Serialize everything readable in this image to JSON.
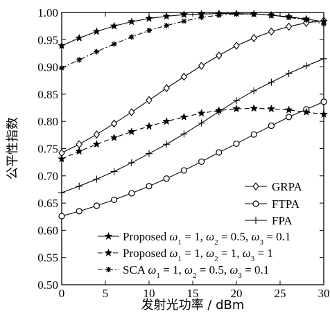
{
  "chart_data": {
    "type": "line",
    "title": "",
    "xlabel": "发射光功率 / dBm",
    "ylabel": "公平性指数",
    "xlim": [
      0,
      30
    ],
    "ylim": [
      0.5,
      1.0
    ],
    "xticks": [
      0,
      5,
      10,
      15,
      20,
      25,
      30
    ],
    "yticks": [
      0.5,
      0.55,
      0.6,
      0.65,
      0.7,
      0.75,
      0.8,
      0.85,
      0.9,
      0.95,
      1.0
    ],
    "xtick_labels": [
      "0",
      "5",
      "10",
      "15",
      "20",
      "25",
      "30"
    ],
    "ytick_labels": [
      "0.50",
      "0.55",
      "0.60",
      "0.65",
      "0.70",
      "0.75",
      "0.80",
      "0.85",
      "0.90",
      "0.95",
      "1.00"
    ],
    "grid": false,
    "legend_position": "bottom-right",
    "x": [
      0,
      2,
      4,
      6,
      8,
      10,
      12,
      14,
      16,
      18,
      20,
      22,
      24,
      26,
      28,
      30
    ],
    "series": [
      {
        "name": "GRPA",
        "marker": "diamond",
        "dash": "solid",
        "values": [
          0.742,
          0.758,
          0.776,
          0.796,
          0.817,
          0.839,
          0.861,
          0.882,
          0.902,
          0.921,
          0.939,
          0.953,
          0.965,
          0.974,
          0.981,
          0.985
        ]
      },
      {
        "name": "FTPA",
        "marker": "circle",
        "dash": "solid",
        "values": [
          0.626,
          0.635,
          0.645,
          0.656,
          0.668,
          0.681,
          0.695,
          0.71,
          0.726,
          0.743,
          0.759,
          0.776,
          0.792,
          0.808,
          0.822,
          0.836
        ]
      },
      {
        "name": "FPA",
        "marker": "plus",
        "dash": "solid",
        "values": [
          0.669,
          0.681,
          0.694,
          0.708,
          0.724,
          0.741,
          0.758,
          0.777,
          0.797,
          0.818,
          0.838,
          0.856,
          0.872,
          0.888,
          0.902,
          0.915
        ]
      },
      {
        "name": "Proposed ω1=1, ω2=0.5, ω3=0.1",
        "marker": "star",
        "dash": "solid",
        "values": [
          0.939,
          0.953,
          0.965,
          0.975,
          0.983,
          0.989,
          0.993,
          0.996,
          0.997,
          0.998,
          0.998,
          0.997,
          0.995,
          0.992,
          0.988,
          0.983
        ]
      },
      {
        "name": "Proposed ω1=1, ω2=1, ω3=1",
        "marker": "star",
        "dash": "dash",
        "values": [
          0.731,
          0.745,
          0.758,
          0.77,
          0.781,
          0.791,
          0.8,
          0.808,
          0.815,
          0.82,
          0.823,
          0.824,
          0.823,
          0.821,
          0.817,
          0.813
        ]
      },
      {
        "name": "SCA ω1=1, ω2=0.5, ω3=0.1",
        "marker": "asterisk",
        "dash": "dashdot",
        "values": [
          0.898,
          0.913,
          0.928,
          0.942,
          0.955,
          0.967,
          0.976,
          0.984,
          0.991,
          0.995,
          0.997,
          0.997,
          0.995,
          0.991,
          0.986,
          0.979
        ]
      }
    ],
    "legend": [
      {
        "parts": [
          {
            "t": "GRPA"
          }
        ]
      },
      {
        "parts": [
          {
            "t": "FTPA"
          }
        ]
      },
      {
        "parts": [
          {
            "t": "FPA"
          }
        ]
      },
      {
        "parts": [
          {
            "t": "Proposed "
          },
          {
            "t": "ω",
            "i": true
          },
          {
            "t": "1",
            "sub": true
          },
          {
            "t": " = 1, "
          },
          {
            "t": "ω",
            "i": true
          },
          {
            "t": "2",
            "sub": true
          },
          {
            "t": " = 0.5, "
          },
          {
            "t": "ω",
            "i": true
          },
          {
            "t": "3",
            "sub": true
          },
          {
            "t": " = 0.1"
          }
        ]
      },
      {
        "parts": [
          {
            "t": "Proposed "
          },
          {
            "t": "ω",
            "i": true
          },
          {
            "t": "1",
            "sub": true
          },
          {
            "t": " = 1, "
          },
          {
            "t": "ω",
            "i": true
          },
          {
            "t": "2",
            "sub": true
          },
          {
            "t": " = 1, "
          },
          {
            "t": "ω",
            "i": true
          },
          {
            "t": "3",
            "sub": true
          },
          {
            "t": " = 1"
          }
        ]
      },
      {
        "parts": [
          {
            "t": "SCA "
          },
          {
            "t": "ω",
            "i": true
          },
          {
            "t": "1",
            "sub": true
          },
          {
            "t": " = 1, "
          },
          {
            "t": "ω",
            "i": true
          },
          {
            "t": "2",
            "sub": true
          },
          {
            "t": " = 0.5, "
          },
          {
            "t": "ω",
            "i": true
          },
          {
            "t": "3",
            "sub": true
          },
          {
            "t": " = 0.1"
          }
        ]
      }
    ]
  }
}
